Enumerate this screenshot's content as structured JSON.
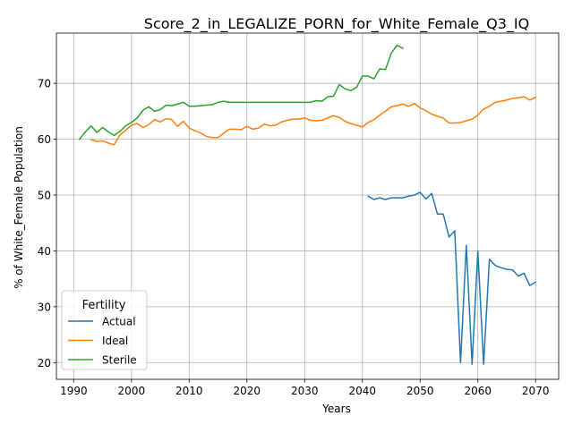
{
  "chart_data": {
    "type": "line",
    "title": "Score_2_in_LEGALIZE_PORN_for_White_Female_Q3_IQ",
    "xlabel": "Years",
    "ylabel": "% of White_Female Population",
    "xlim": [
      1987,
      2074
    ],
    "ylim": [
      17,
      79
    ],
    "xticks": [
      1990,
      2000,
      2010,
      2020,
      2030,
      2040,
      2050,
      2060,
      2070
    ],
    "yticks": [
      20,
      30,
      40,
      50,
      60,
      70
    ],
    "grid": true,
    "legend": {
      "title": "Fertility",
      "position": "lower-left"
    },
    "series": [
      {
        "name": "Actual",
        "color": "#1f77b4",
        "x": [
          2041,
          2042,
          2043,
          2044,
          2045,
          2046,
          2047,
          2048,
          2049,
          2050,
          2051,
          2052,
          2053,
          2054,
          2055,
          2056,
          2057,
          2058,
          2059,
          2060,
          2061,
          2062,
          2063,
          2064,
          2065,
          2066,
          2067,
          2068,
          2069,
          2070
        ],
        "y": [
          49.8,
          49.2,
          49.5,
          49.2,
          49.5,
          49.5,
          49.5,
          49.8,
          50.0,
          50.5,
          49.3,
          50.3,
          46.6,
          46.6,
          42.5,
          43.6,
          20.0,
          41.0,
          19.7,
          40.0,
          19.7,
          38.5,
          37.4,
          37.0,
          36.7,
          36.6,
          35.5,
          36.0,
          33.8,
          34.4
        ]
      },
      {
        "name": "Ideal",
        "color": "#ff7f0e",
        "x": [
          1993,
          1994,
          1995,
          1996,
          1997,
          1998,
          1999,
          2000,
          2001,
          2002,
          2003,
          2004,
          2005,
          2006,
          2007,
          2008,
          2009,
          2010,
          2011,
          2012,
          2013,
          2014,
          2015,
          2016,
          2017,
          2018,
          2019,
          2020,
          2021,
          2022,
          2023,
          2024,
          2025,
          2026,
          2027,
          2028,
          2029,
          2030,
          2031,
          2032,
          2033,
          2034,
          2035,
          2036,
          2037,
          2038,
          2039,
          2040,
          2041,
          2042,
          2043,
          2044,
          2045,
          2046,
          2047,
          2048,
          2049,
          2050,
          2051,
          2052,
          2053,
          2054,
          2055,
          2056,
          2057,
          2058,
          2059,
          2060,
          2061,
          2062,
          2063,
          2064,
          2065,
          2066,
          2067,
          2068,
          2069,
          2070
        ],
        "y": [
          59.9,
          59.6,
          59.7,
          59.3,
          59.0,
          60.8,
          61.6,
          62.5,
          62.8,
          62.1,
          62.6,
          63.5,
          63.1,
          63.7,
          63.5,
          62.3,
          63.2,
          62.0,
          61.5,
          61.1,
          60.5,
          60.3,
          60.3,
          61.1,
          61.8,
          61.8,
          61.7,
          62.3,
          61.8,
          62.0,
          62.7,
          62.4,
          62.5,
          63.1,
          63.4,
          63.6,
          63.6,
          63.8,
          63.4,
          63.3,
          63.4,
          63.8,
          64.2,
          63.9,
          63.2,
          62.8,
          62.5,
          62.2,
          63.0,
          63.5,
          64.3,
          65.0,
          65.8,
          66.0,
          66.3,
          65.9,
          66.4,
          65.6,
          65.1,
          64.5,
          64.1,
          63.8,
          62.9,
          62.9,
          63.0,
          63.3,
          63.6,
          64.3,
          65.4,
          65.9,
          66.6,
          66.8,
          67.0,
          67.3,
          67.4,
          67.6,
          67.0,
          67.5
        ]
      },
      {
        "name": "Sterile",
        "color": "#2ca02c",
        "x": [
          1991,
          1992,
          1993,
          1994,
          1995,
          1996,
          1997,
          1998,
          1999,
          2000,
          2001,
          2002,
          2003,
          2004,
          2005,
          2006,
          2007,
          2008,
          2009,
          2010,
          2011,
          2012,
          2013,
          2014,
          2015,
          2016,
          2017,
          2018,
          2019,
          2020,
          2021,
          2022,
          2023,
          2024,
          2025,
          2026,
          2027,
          2028,
          2029,
          2030,
          2031,
          2032,
          2033,
          2034,
          2035,
          2036,
          2037,
          2038,
          2039,
          2040,
          2041,
          2042,
          2043,
          2044,
          2045,
          2046,
          2047
        ],
        "y": [
          60.0,
          61.3,
          62.4,
          61.2,
          62.1,
          61.3,
          60.7,
          61.4,
          62.4,
          63.0,
          63.8,
          65.2,
          65.8,
          65.0,
          65.3,
          66.1,
          66.0,
          66.3,
          66.6,
          65.9,
          65.9,
          66.0,
          66.1,
          66.2,
          66.6,
          66.8,
          66.6,
          66.6,
          66.6,
          66.6,
          66.6,
          66.6,
          66.6,
          66.6,
          66.6,
          66.6,
          66.6,
          66.6,
          66.6,
          66.6,
          66.6,
          66.9,
          66.8,
          67.6,
          67.7,
          69.8,
          69.0,
          68.7,
          69.3,
          71.3,
          71.3,
          70.8,
          72.6,
          72.5,
          75.4,
          76.8,
          76.3
        ]
      }
    ]
  }
}
